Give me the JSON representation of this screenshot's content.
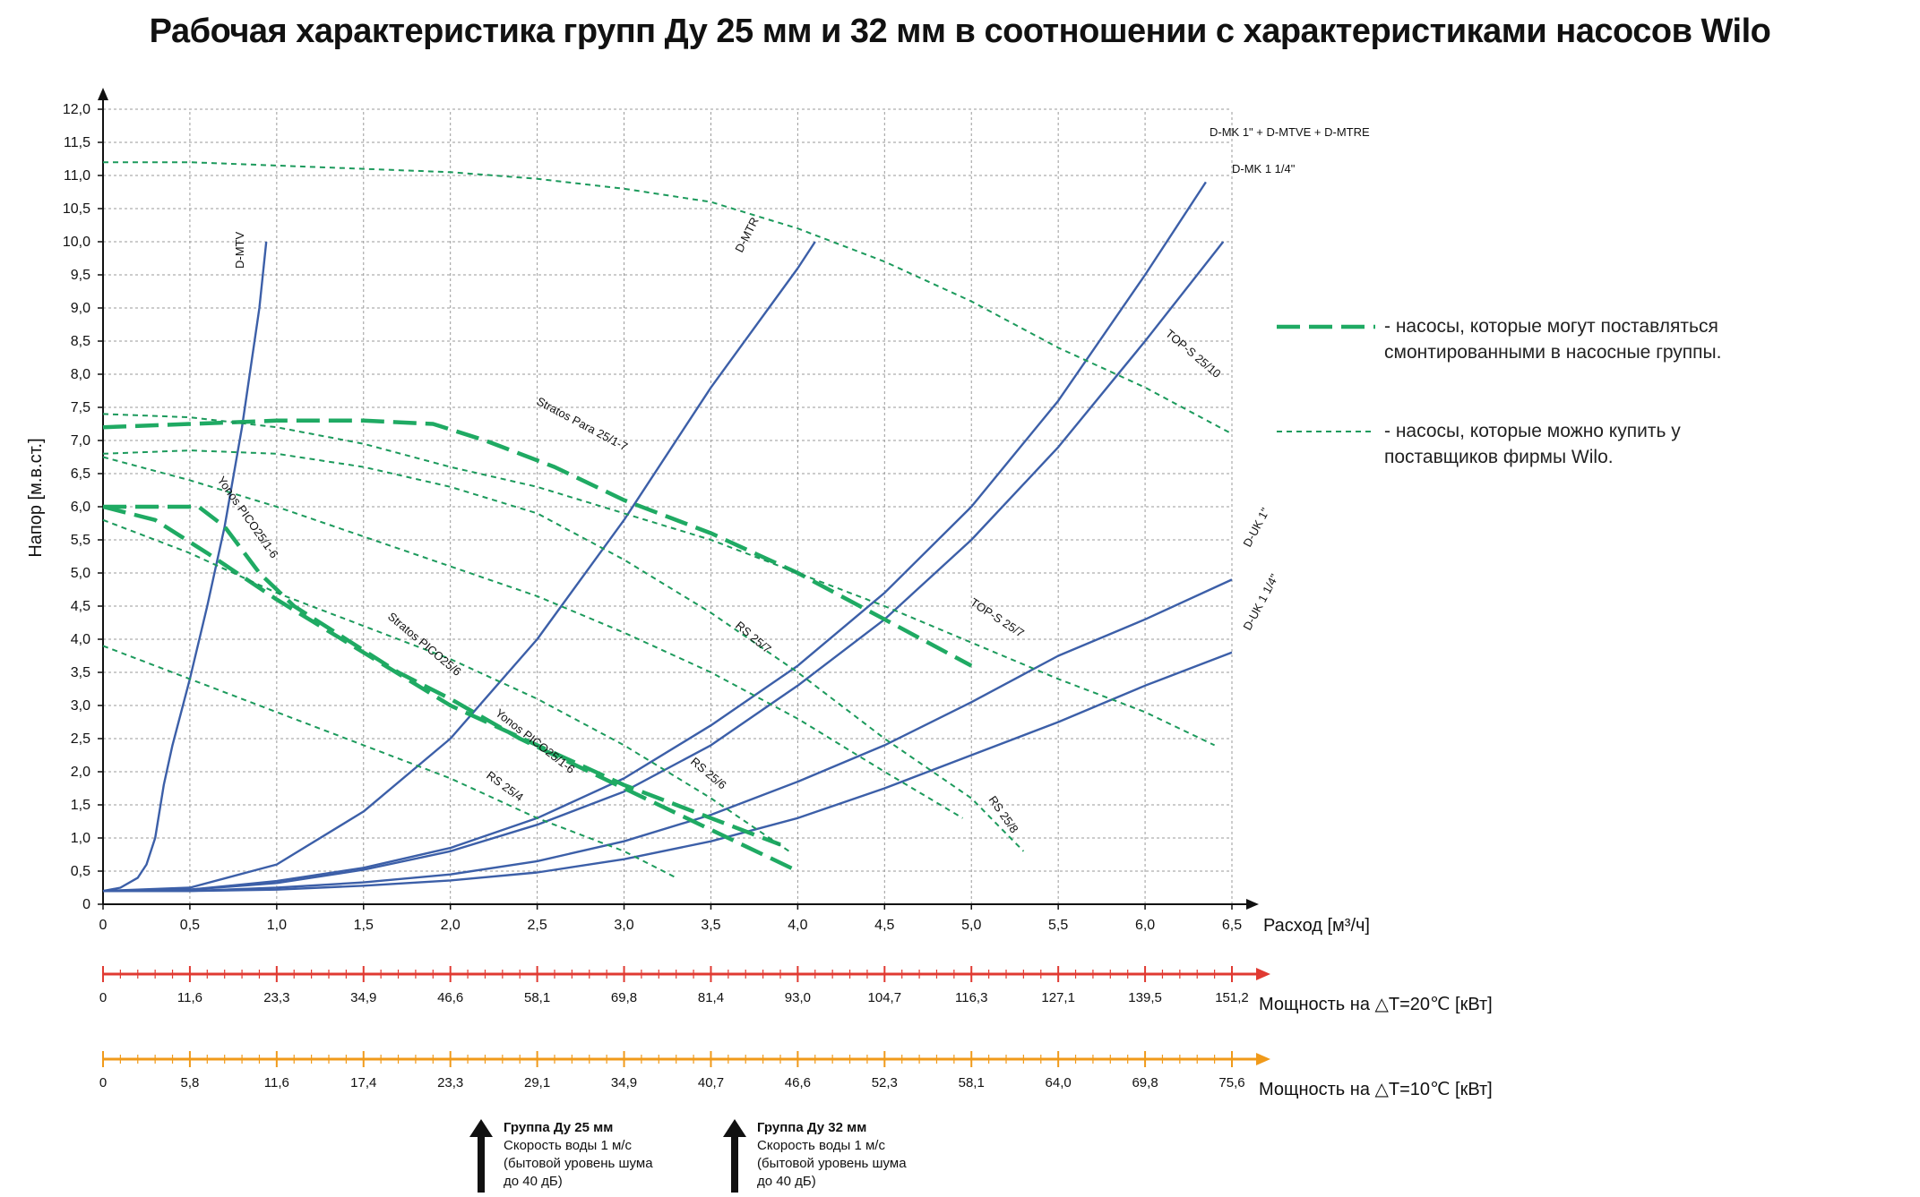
{
  "title": "Рабочая характеристика групп Ду 25 мм и 32 мм в соотношении с характеристиками насосов Wilo",
  "chart_data": {
    "type": "line",
    "xlabel": "Расход [м³/ч]",
    "ylabel": "Напор [м.в.ст.]",
    "xlim": [
      0,
      6.5
    ],
    "ylim": [
      0,
      12
    ],
    "x_ticks": [
      "0",
      "0,5",
      "1,0",
      "1,5",
      "2,0",
      "2,5",
      "3,0",
      "3,5",
      "4,0",
      "4,5",
      "5,0",
      "5,5",
      "6,0",
      "6,5"
    ],
    "y_ticks": [
      "0",
      "0,5",
      "1,0",
      "1,5",
      "2,0",
      "2,5",
      "3,0",
      "3,5",
      "4,0",
      "4,5",
      "5,0",
      "5,5",
      "6,0",
      "6,5",
      "7,0",
      "7,5",
      "8,0",
      "8,5",
      "9,0",
      "9,5",
      "10,0",
      "10,5",
      "11,0",
      "11,5",
      "12,0"
    ],
    "grid": true,
    "colors": {
      "group_curve": "#3c5fa8",
      "pump_mountable": "#1faa63",
      "pump_other": "#1c9a5c",
      "axis_20": "#e03a32",
      "axis_10": "#f09a1a"
    },
    "group_series": [
      {
        "name": "D-MTV",
        "x": [
          0,
          0.1,
          0.2,
          0.25,
          0.3,
          0.35,
          0.4,
          0.5,
          0.6,
          0.7,
          0.8,
          0.9,
          0.94
        ],
        "y": [
          0.2,
          0.25,
          0.4,
          0.6,
          1.0,
          1.8,
          2.4,
          3.4,
          4.5,
          5.7,
          7.2,
          9.0,
          10.0
        ]
      },
      {
        "name": "D-MTR",
        "x": [
          0,
          0.5,
          1.0,
          1.5,
          2.0,
          2.5,
          3.0,
          3.5,
          4.0,
          4.1
        ],
        "y": [
          0.2,
          0.25,
          0.6,
          1.4,
          2.5,
          4.0,
          5.8,
          7.8,
          9.6,
          10.0
        ]
      },
      {
        "name": "D-MK 1\" + D-MTVE + D-MTRE",
        "x": [
          0,
          0.5,
          1.0,
          1.5,
          2.0,
          2.5,
          3.0,
          3.5,
          4.0,
          4.5,
          5.0,
          5.5,
          6.0,
          6.35
        ],
        "y": [
          0.2,
          0.22,
          0.35,
          0.55,
          0.85,
          1.3,
          1.9,
          2.7,
          3.6,
          4.7,
          6.0,
          7.6,
          9.5,
          10.9
        ]
      },
      {
        "name": "D-MK 1 1/4\"",
        "x": [
          0,
          0.5,
          1.0,
          1.5,
          2.0,
          2.5,
          3.0,
          3.5,
          4.0,
          4.5,
          5.0,
          5.5,
          6.0,
          6.45
        ],
        "y": [
          0.2,
          0.22,
          0.32,
          0.52,
          0.8,
          1.2,
          1.7,
          2.4,
          3.3,
          4.3,
          5.5,
          6.9,
          8.5,
          10.0
        ]
      },
      {
        "name": "D-UK 1\"",
        "x": [
          0,
          0.5,
          1.0,
          1.5,
          2.0,
          2.5,
          3.0,
          3.5,
          4.0,
          4.5,
          5.0,
          5.5,
          6.0,
          6.5
        ],
        "y": [
          0.2,
          0.2,
          0.25,
          0.33,
          0.45,
          0.65,
          0.95,
          1.35,
          1.85,
          2.4,
          3.05,
          3.75,
          4.3,
          4.9
        ]
      },
      {
        "name": "D-UK 1 1/4\"",
        "x": [
          0,
          0.5,
          1.0,
          1.5,
          2.0,
          2.5,
          3.0,
          3.5,
          4.0,
          4.5,
          5.0,
          5.5,
          6.0,
          6.5
        ],
        "y": [
          0.2,
          0.2,
          0.22,
          0.28,
          0.36,
          0.48,
          0.68,
          0.95,
          1.3,
          1.75,
          2.25,
          2.75,
          3.3,
          3.8
        ]
      }
    ],
    "pump_series": [
      {
        "name": "Stratos Para 25/1-7",
        "style": "mountable",
        "x": [
          0,
          0.5,
          1.0,
          1.5,
          1.9,
          2.2,
          2.6,
          3.0,
          3.5,
          4.0,
          4.5,
          5.0
        ],
        "y": [
          7.2,
          7.25,
          7.3,
          7.3,
          7.25,
          7.0,
          6.6,
          6.1,
          5.6,
          5.0,
          4.3,
          3.6
        ]
      },
      {
        "name": "Yonos PICO25/1-6 (upper)",
        "style": "mountable",
        "x": [
          0,
          0.5,
          0.55,
          0.7,
          0.9,
          1.1,
          1.4,
          1.7,
          2.0,
          2.4,
          2.8,
          3.2,
          3.6,
          4.0
        ],
        "y": [
          6.0,
          6.0,
          6.0,
          5.7,
          5.0,
          4.5,
          4.0,
          3.5,
          3.1,
          2.5,
          2.0,
          1.5,
          1.0,
          0.5
        ]
      },
      {
        "name": "Stratos PICO25/6",
        "style": "mountable",
        "x": [
          0,
          0.3,
          0.6,
          1.0,
          1.5,
          2.0,
          2.5,
          3.0,
          3.5,
          3.9
        ],
        "y": [
          6.0,
          5.8,
          5.3,
          4.6,
          3.8,
          3.0,
          2.4,
          1.8,
          1.3,
          0.9
        ]
      },
      {
        "name": "TOP-S 25/10",
        "style": "other",
        "x": [
          0,
          0.5,
          1.0,
          1.5,
          2.0,
          2.5,
          3.0,
          3.5,
          4.0,
          4.5,
          5.0,
          5.5,
          6.0,
          6.5
        ],
        "y": [
          11.2,
          11.2,
          11.15,
          11.1,
          11.05,
          10.95,
          10.8,
          10.6,
          10.2,
          9.7,
          9.1,
          8.4,
          7.8,
          7.1
        ]
      },
      {
        "name": "TOP-S 25/7",
        "style": "other",
        "x": [
          0,
          0.5,
          1.0,
          1.5,
          2.0,
          2.5,
          3.0,
          3.5,
          4.0,
          4.5,
          5.0,
          5.5,
          6.0,
          6.4
        ],
        "y": [
          7.4,
          7.35,
          7.2,
          6.95,
          6.6,
          6.3,
          5.9,
          5.5,
          5.0,
          4.5,
          3.95,
          3.4,
          2.9,
          2.4
        ]
      },
      {
        "name": "RS 25/8",
        "style": "other",
        "x": [
          0,
          0.5,
          1.0,
          1.5,
          2.0,
          2.5,
          3.0,
          3.5,
          4.0,
          4.5,
          5.0,
          5.3
        ],
        "y": [
          6.8,
          6.85,
          6.8,
          6.6,
          6.3,
          5.9,
          5.2,
          4.4,
          3.5,
          2.5,
          1.6,
          0.8
        ]
      },
      {
        "name": "RS 25/7",
        "style": "other",
        "x": [
          0,
          0.5,
          1.0,
          1.5,
          2.0,
          2.5,
          3.0,
          3.5,
          4.0,
          4.5,
          4.95
        ],
        "y": [
          6.75,
          6.4,
          6.0,
          5.55,
          5.1,
          4.65,
          4.1,
          3.5,
          2.8,
          2.0,
          1.3
        ]
      },
      {
        "name": "RS 25/6",
        "style": "other",
        "x": [
          0,
          0.5,
          1.0,
          1.5,
          2.0,
          2.5,
          3.0,
          3.5,
          3.95
        ],
        "y": [
          5.8,
          5.3,
          4.7,
          4.2,
          3.7,
          3.1,
          2.4,
          1.6,
          0.8
        ]
      },
      {
        "name": "RS 25/4",
        "style": "other",
        "x": [
          0,
          0.5,
          1.0,
          1.5,
          2.0,
          2.5,
          3.0,
          3.3
        ],
        "y": [
          3.9,
          3.4,
          2.9,
          2.4,
          1.9,
          1.3,
          0.8,
          0.4
        ]
      }
    ],
    "curve_labels": [
      "D-MTV",
      "D-MTR",
      "D-MK 1\" + D-MTVE + D-MTRE",
      "D-MK 1 1/4\"",
      "D-UK 1\"",
      "D-UK 1 1/4\"",
      "TOP-S 25/10",
      "TOP-S 25/7",
      "Stratos Para 25/1-7",
      "Yonos PICO25/1-6",
      "Stratos PICO25/6",
      "Yonos PICO25/1-6",
      "RS 25/7",
      "RS 25/6",
      "RS 25/8",
      "RS 25/4"
    ],
    "power_axis_20": {
      "label": "Мощность на △T=20℃ [кВт]",
      "ticks": [
        "0",
        "11,6",
        "23,3",
        "34,9",
        "46,6",
        "58,1",
        "69,8",
        "81,4",
        "93,0",
        "104,7",
        "116,3",
        "127,1",
        "139,5",
        "151,2"
      ]
    },
    "power_axis_10": {
      "label": "Мощность на △T=10℃ [кВт]",
      "ticks": [
        "0",
        "5,8",
        "11,6",
        "17,4",
        "23,3",
        "29,1",
        "34,9",
        "40,7",
        "46,6",
        "52,3",
        "58,1",
        "64,0",
        "69,8",
        "75,6"
      ]
    }
  },
  "legend": {
    "mountable": "- насосы, которые могут поставляться смонтированными в насосные группы.",
    "other": "- насосы, которые можно купить у поставщиков фирмы Wilo."
  },
  "notes": [
    {
      "title": "Группа Ду 25 мм",
      "l1": "Скорость воды 1 м/с",
      "l2": "(бытовой уровень шума",
      "l3": "до 40 дБ)"
    },
    {
      "title": "Группа Ду 32 мм",
      "l1": "Скорость воды 1 м/с",
      "l2": "(бытовой уровень шума",
      "l3": "до 40 дБ)"
    }
  ]
}
